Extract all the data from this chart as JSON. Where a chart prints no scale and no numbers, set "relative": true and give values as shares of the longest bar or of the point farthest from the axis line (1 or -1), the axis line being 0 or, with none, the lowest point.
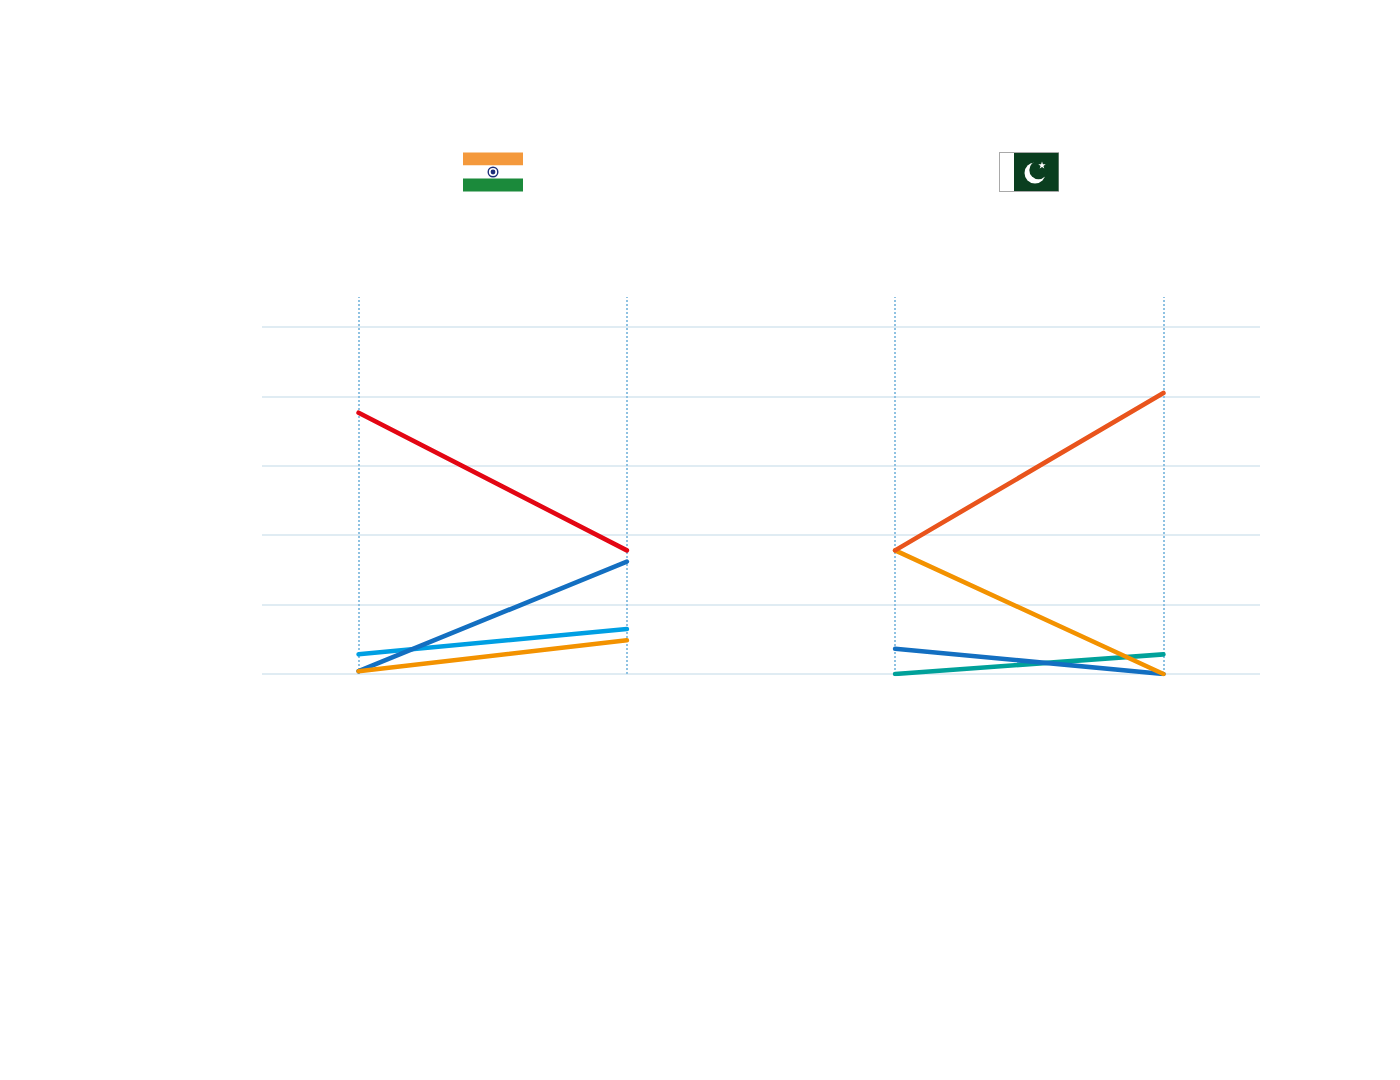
{
  "chart_data": {
    "type": "line",
    "relative": true,
    "grid": true,
    "categories": [
      null,
      null,
      null,
      null
    ],
    "series": [
      {
        "color": "#e30613",
        "values": [
          0.93,
          0.44,
          null,
          null
        ]
      },
      {
        "color": "#009fe3",
        "values": [
          0.07,
          0.16,
          null,
          null
        ]
      },
      {
        "color": "#136fc1",
        "values": [
          0.01,
          0.4,
          null,
          null
        ]
      },
      {
        "color": "#f39200",
        "values": [
          0.01,
          0.12,
          null,
          null
        ]
      },
      {
        "color": "#00a19a",
        "values": [
          null,
          null,
          0,
          0.07
        ]
      },
      {
        "color": "#136fc1",
        "values": [
          null,
          null,
          0.09,
          0
        ]
      },
      {
        "color": "#f39200",
        "values": [
          null,
          null,
          0.44,
          0
        ]
      },
      {
        "color": "#e9541c",
        "values": [
          null,
          null,
          0.44,
          1
        ]
      }
    ]
  }
}
